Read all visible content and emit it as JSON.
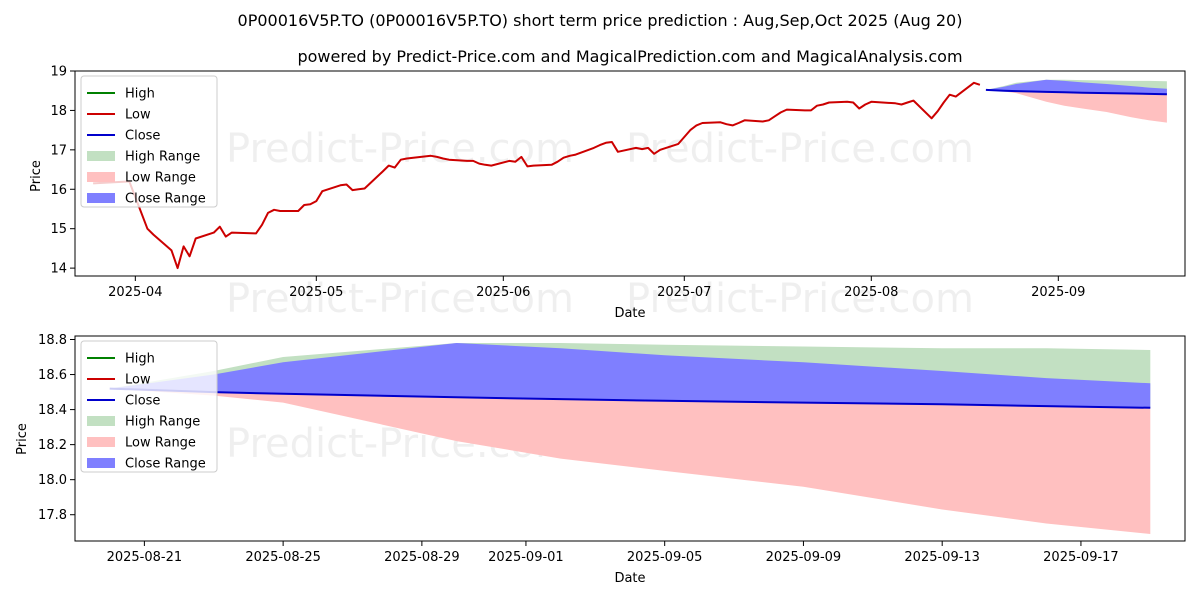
{
  "header": {
    "title": "0P00016V5P.TO (0P00016V5P.TO) short term price prediction : Aug,Sep,Oct 2025 (Aug 20)",
    "subtitle": "powered by Predict-Price.com and MagicalPrediction.com and MagicalAnalysis.com"
  },
  "watermark": "Predict-Price.com",
  "colors": {
    "high": "#008000",
    "low": "#cc0000",
    "close": "#0000cc",
    "high_range": "#c2e0c2",
    "low_range": "#ffc0c0",
    "close_range": "#7f7fff"
  },
  "legend": [
    "High",
    "Low",
    "Close",
    "High Range",
    "Low Range",
    "Close Range"
  ],
  "chart_data": [
    {
      "type": "line",
      "xlabel": "Date",
      "ylabel": "Price",
      "xlim": [
        "2025-03-22",
        "2025-09-22"
      ],
      "ylim": [
        13.8,
        19.0
      ],
      "x_ticks": [
        "2025-04",
        "2025-05",
        "2025-06",
        "2025-07",
        "2025-08",
        "2025-09"
      ],
      "x_tick_dates": [
        "2025-04-01",
        "2025-05-01",
        "2025-06-01",
        "2025-07-01",
        "2025-08-01",
        "2025-09-01"
      ],
      "y_ticks": [
        14,
        15,
        16,
        17,
        18,
        19
      ],
      "history": {
        "name": "Low",
        "x": [
          "2025-03-25",
          "2025-03-31",
          "2025-04-03",
          "2025-04-04",
          "2025-04-07",
          "2025-04-08",
          "2025-04-09",
          "2025-04-10",
          "2025-04-11",
          "2025-04-14",
          "2025-04-15",
          "2025-04-16",
          "2025-04-17",
          "2025-04-21",
          "2025-04-22",
          "2025-04-23",
          "2025-04-24",
          "2025-04-25",
          "2025-04-28",
          "2025-04-29",
          "2025-04-30",
          "2025-05-01",
          "2025-05-02",
          "2025-05-05",
          "2025-05-06",
          "2025-05-07",
          "2025-05-08",
          "2025-05-09",
          "2025-05-12",
          "2025-05-13",
          "2025-05-14",
          "2025-05-15",
          "2025-05-16",
          "2025-05-20",
          "2025-05-21",
          "2025-05-22",
          "2025-05-23",
          "2025-05-26",
          "2025-05-27",
          "2025-05-28",
          "2025-05-29",
          "2025-05-30",
          "2025-06-02",
          "2025-06-03",
          "2025-06-04",
          "2025-06-05",
          "2025-06-06",
          "2025-06-09",
          "2025-06-10",
          "2025-06-11",
          "2025-06-12",
          "2025-06-13",
          "2025-06-16",
          "2025-06-17",
          "2025-06-18",
          "2025-06-19",
          "2025-06-20",
          "2025-06-23",
          "2025-06-24",
          "2025-06-25",
          "2025-06-26",
          "2025-06-27",
          "2025-06-30",
          "2025-07-02",
          "2025-07-03",
          "2025-07-04",
          "2025-07-07",
          "2025-07-08",
          "2025-07-09",
          "2025-07-10",
          "2025-07-11",
          "2025-07-14",
          "2025-07-15",
          "2025-07-16",
          "2025-07-17",
          "2025-07-18",
          "2025-07-21",
          "2025-07-22",
          "2025-07-23",
          "2025-07-24",
          "2025-07-25",
          "2025-07-28",
          "2025-07-29",
          "2025-07-30",
          "2025-07-31",
          "2025-08-01",
          "2025-08-05",
          "2025-08-06",
          "2025-08-07",
          "2025-08-08",
          "2025-08-11",
          "2025-08-12",
          "2025-08-13",
          "2025-08-14",
          "2025-08-15",
          "2025-08-18",
          "2025-08-19"
        ],
        "values": [
          16.15,
          16.2,
          15.0,
          14.85,
          14.45,
          14.0,
          14.55,
          14.3,
          14.75,
          14.9,
          15.05,
          14.8,
          14.9,
          14.88,
          15.1,
          15.4,
          15.48,
          15.45,
          15.45,
          15.6,
          15.62,
          15.7,
          15.95,
          16.1,
          16.12,
          15.98,
          16.0,
          16.02,
          16.45,
          16.6,
          16.55,
          16.75,
          16.78,
          16.85,
          16.82,
          16.78,
          16.75,
          16.72,
          16.72,
          16.65,
          16.62,
          16.6,
          16.72,
          16.7,
          16.82,
          16.58,
          16.6,
          16.62,
          16.7,
          16.8,
          16.85,
          16.88,
          17.05,
          17.12,
          17.18,
          17.2,
          16.95,
          17.05,
          17.02,
          17.05,
          16.9,
          17.0,
          17.15,
          17.5,
          17.62,
          17.68,
          17.7,
          17.65,
          17.62,
          17.68,
          17.75,
          17.72,
          17.75,
          17.85,
          17.95,
          18.02,
          18.0,
          18.0,
          18.12,
          18.15,
          18.2,
          18.22,
          18.2,
          18.05,
          18.15,
          18.22,
          18.18,
          18.15,
          18.2,
          18.25,
          17.8,
          17.98,
          18.2,
          18.4,
          18.35,
          18.7,
          18.65
        ]
      },
      "forecast": {
        "x": [
          "2025-08-20",
          "2025-08-23",
          "2025-08-25",
          "2025-08-30",
          "2025-09-02",
          "2025-09-05",
          "2025-09-09",
          "2025-09-13",
          "2025-09-16",
          "2025-09-19"
        ],
        "close": [
          18.52,
          18.5,
          18.49,
          18.47,
          18.46,
          18.45,
          18.44,
          18.43,
          18.42,
          18.41
        ],
        "high_upper": [
          18.52,
          18.62,
          18.7,
          18.78,
          18.78,
          18.77,
          18.76,
          18.75,
          18.75,
          18.74
        ],
        "low_lower": [
          18.52,
          18.48,
          18.44,
          18.22,
          18.12,
          18.05,
          17.96,
          17.83,
          17.75,
          17.69
        ],
        "close_upper": [
          18.52,
          18.6,
          18.67,
          18.78,
          18.75,
          18.71,
          18.67,
          18.62,
          18.58,
          18.55
        ]
      }
    },
    {
      "type": "line",
      "xlabel": "Date",
      "ylabel": "Price",
      "xlim": [
        "2025-08-19",
        "2025-09-20"
      ],
      "ylim": [
        17.65,
        18.82
      ],
      "x_ticks": [
        "2025-08-21",
        "2025-08-25",
        "2025-08-29",
        "2025-09-01",
        "2025-09-05",
        "2025-09-09",
        "2025-09-13",
        "2025-09-17"
      ],
      "y_ticks": [
        17.8,
        18.0,
        18.2,
        18.4,
        18.6,
        18.8
      ],
      "y_tick_labels": [
        "17.8",
        "18.0",
        "18.2",
        "18.4",
        "18.6",
        "18.8"
      ]
    }
  ]
}
